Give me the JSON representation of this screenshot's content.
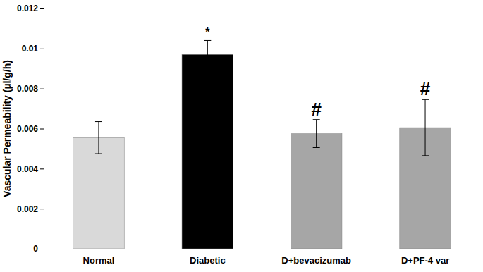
{
  "chart_data": {
    "type": "bar",
    "y_label": "Vascular Permeability (µl/g/h)",
    "categories": [
      "Normal",
      "Diabetic",
      "D+bevacizumab",
      "D+PF-4 var"
    ],
    "values": [
      0.00555,
      0.0097,
      0.00575,
      0.00605
    ],
    "errors": [
      0.0008,
      0.0007,
      0.0007,
      0.0014
    ],
    "annotations": [
      null,
      "*",
      "#",
      "#"
    ],
    "colors": [
      "#d9d9d9",
      "#000000",
      "#a6a6a6",
      "#a6a6a6"
    ],
    "ylim": [
      0,
      0.012
    ],
    "yticks": [
      0,
      0.002,
      0.004,
      0.006,
      0.008,
      0.01,
      0.012
    ],
    "grid": false
  }
}
